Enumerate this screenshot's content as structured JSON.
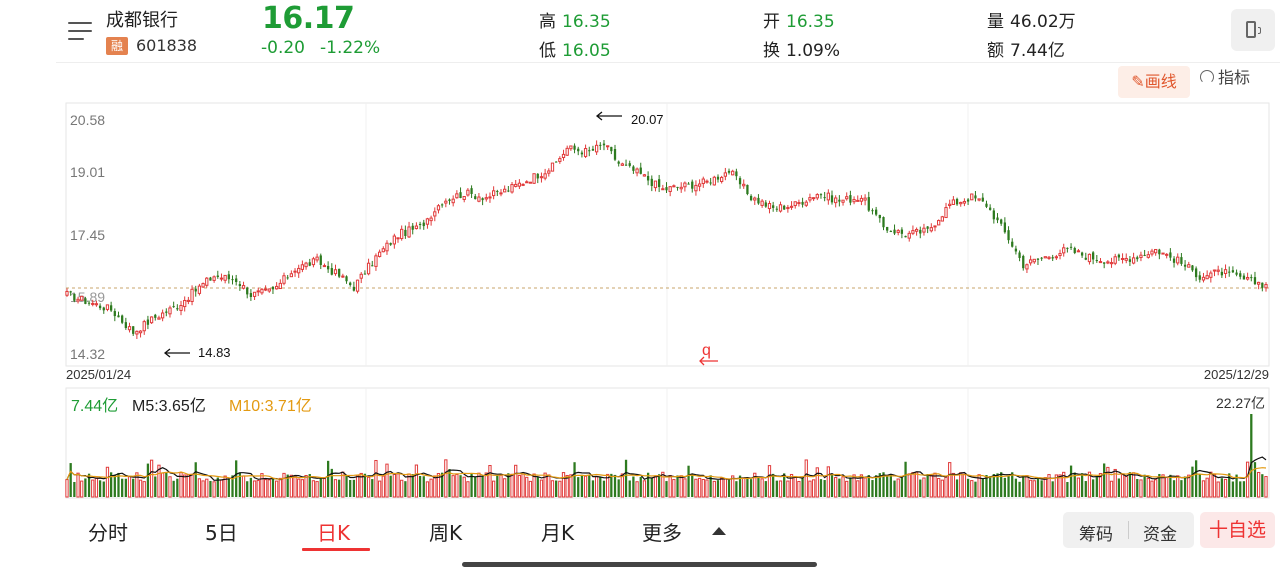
{
  "header": {
    "stock_name": "成都银行",
    "badge": "融",
    "code": "601838",
    "price": "16.17",
    "change": "-0.20",
    "change_pct": "-1.22%",
    "stats": {
      "high_label": "高",
      "high_value": "16.35",
      "low_label": "低",
      "low_value": "16.05",
      "open_label": "开",
      "open_value": "16.35",
      "turnover_label": "换",
      "turnover_value": "1.09%",
      "volume_label": "量",
      "volume_value": "46.02万",
      "amount_label": "额",
      "amount_value": "7.44亿"
    }
  },
  "toolbar": {
    "draw_label": "画线",
    "indicator_label": "指标"
  },
  "colors": {
    "up": "#e13a3a",
    "down": "#2d7a1f",
    "price_green": "#1e9c35",
    "ma10": "#e39a12",
    "accent": "#e33"
  },
  "chart_data": {
    "type": "candlestick",
    "y_ticks": [
      "20.58",
      "19.01",
      "17.45",
      "15.89",
      "14.32"
    ],
    "x_start": "2025/01/24",
    "x_end": "2025/12/29",
    "high_marker": "20.07",
    "low_marker": "14.83",
    "cursor_label": "q",
    "last_close": 16.17,
    "anchors": [
      [
        0,
        15.9
      ],
      [
        6,
        15.7
      ],
      [
        12,
        15.5
      ],
      [
        18,
        14.9
      ],
      [
        24,
        15.3
      ],
      [
        30,
        15.6
      ],
      [
        36,
        16.1
      ],
      [
        40,
        16.4
      ],
      [
        46,
        16.3
      ],
      [
        50,
        15.9
      ],
      [
        56,
        16.0
      ],
      [
        62,
        16.6
      ],
      [
        68,
        16.8
      ],
      [
        74,
        16.4
      ],
      [
        78,
        16.1
      ],
      [
        84,
        16.9
      ],
      [
        90,
        17.5
      ],
      [
        96,
        17.7
      ],
      [
        102,
        18.4
      ],
      [
        108,
        18.6
      ],
      [
        114,
        18.5
      ],
      [
        120,
        18.7
      ],
      [
        126,
        19.0
      ],
      [
        132,
        19.3
      ],
      [
        136,
        19.8
      ],
      [
        142,
        19.7
      ],
      [
        146,
        19.9
      ],
      [
        150,
        19.4
      ],
      [
        156,
        19.1
      ],
      [
        162,
        18.7
      ],
      [
        168,
        18.8
      ],
      [
        174,
        18.9
      ],
      [
        180,
        19.2
      ],
      [
        186,
        18.5
      ],
      [
        192,
        18.2
      ],
      [
        198,
        18.3
      ],
      [
        204,
        18.6
      ],
      [
        210,
        18.4
      ],
      [
        216,
        18.5
      ],
      [
        222,
        17.7
      ],
      [
        228,
        17.5
      ],
      [
        234,
        17.6
      ],
      [
        240,
        18.3
      ],
      [
        246,
        18.5
      ],
      [
        250,
        18.3
      ],
      [
        256,
        17.4
      ],
      [
        260,
        16.7
      ],
      [
        266,
        16.9
      ],
      [
        272,
        17.1
      ],
      [
        278,
        16.9
      ],
      [
        284,
        16.8
      ],
      [
        290,
        16.9
      ],
      [
        296,
        17.1
      ],
      [
        302,
        16.8
      ],
      [
        308,
        16.4
      ],
      [
        314,
        16.5
      ],
      [
        320,
        16.3
      ],
      [
        326,
        16.17
      ]
    ]
  },
  "volume": {
    "value_label": "7.44亿",
    "ma5_label": "M5:3.65亿",
    "ma10_label": "M10:3.71亿",
    "max_label": "22.27亿"
  },
  "bottom_tabs": [
    "分时",
    "5日",
    "日K",
    "周K",
    "月K",
    "更多"
  ],
  "bottom_actions": {
    "chips": "筹码",
    "funds": "资金",
    "favorite": "十自选"
  }
}
